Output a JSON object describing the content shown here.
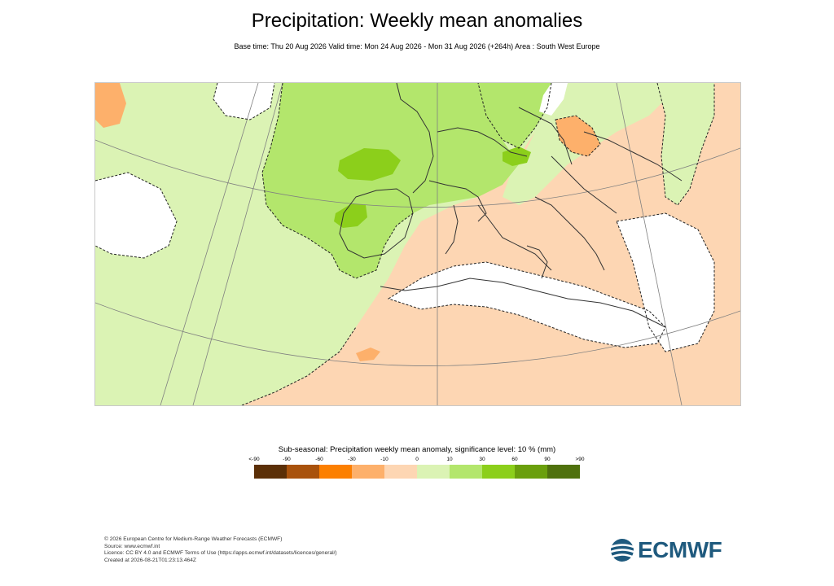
{
  "header": {
    "title": "Precipitation: Weekly mean anomalies",
    "subtitle": "Base time: Thu 20 Aug 2026 Valid time: Mon 24 Aug 2026 - Mon 31 Aug 2026 (+264h) Area : South West Europe"
  },
  "legend": {
    "title": "Sub-seasonal: Precipitation weekly mean anomaly, significance level: 10 % (mm)",
    "ticks": [
      "<-90",
      "-90",
      "-60",
      "-30",
      "-10",
      "0",
      "10",
      "30",
      "60",
      "90",
      ">90"
    ],
    "colors": [
      "#5b2f07",
      "#a9520c",
      "#fc7f00",
      "#fdb06b",
      "#fdd6b3",
      "#dbf3b4",
      "#b3e66c",
      "#8ccf1b",
      "#6a9f0c",
      "#4f710d"
    ]
  },
  "map": {
    "area": "South West Europe",
    "land_base_color": "#fdd6b3",
    "ocean_base_color": "#dbf3b4",
    "wet_color": "#b3e66c",
    "strong_wet_color": "#8ccf1b",
    "dry_color": "#fdb06b",
    "insignificant_color": "#ffffff"
  },
  "footer": {
    "lines": [
      "© 2026 European Centre for Medium-Range Weather Forecasts (ECMWF)",
      "Source: www.ecmwf.int",
      "Licence: CC BY 4.0 and ECMWF Terms of Use (https://apps.ecmwf.int/datasets/licences/general/)",
      "Created at 2026-08-21T01:23:13.464Z"
    ]
  },
  "logo": {
    "text": "ECMWF",
    "icon": "ecmwf-logo-icon"
  }
}
